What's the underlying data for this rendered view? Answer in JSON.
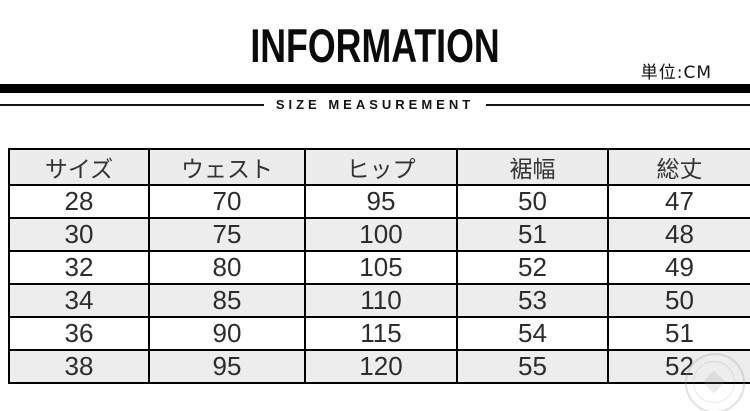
{
  "page": {
    "title": "INFORMATION",
    "unit_label": "単位:CM",
    "section_label": "SIZE MEASUREMENT"
  },
  "chart_data": {
    "type": "table",
    "title": "INFORMATION",
    "subtitle": "SIZE MEASUREMENT",
    "unit": "CM",
    "columns": [
      "サイズ",
      "ウェスト",
      "ヒップ",
      "裾幅",
      "総丈"
    ],
    "rows": [
      [
        "28",
        "70",
        "95",
        "50",
        "47"
      ],
      [
        "30",
        "75",
        "100",
        "51",
        "48"
      ],
      [
        "32",
        "80",
        "105",
        "52",
        "49"
      ],
      [
        "34",
        "85",
        "110",
        "53",
        "50"
      ],
      [
        "36",
        "90",
        "115",
        "54",
        "51"
      ],
      [
        "38",
        "95",
        "120",
        "55",
        "52"
      ]
    ]
  },
  "colors": {
    "border": "#000000",
    "header_bg": "#ececec",
    "row_alt_bg": "#ededed",
    "text": "#2d2d2d",
    "title_text": "#0b0b0b"
  }
}
